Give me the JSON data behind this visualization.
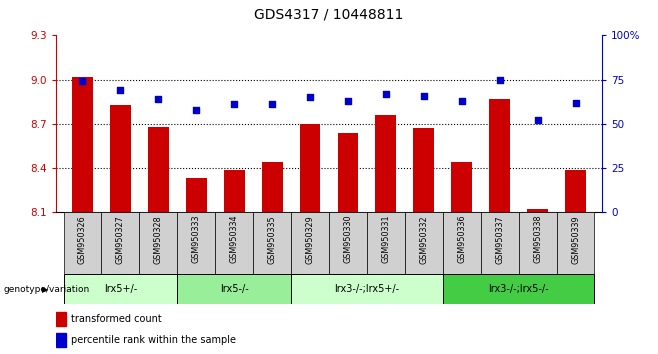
{
  "title": "GDS4317 / 10448811",
  "samples": [
    "GSM950326",
    "GSM950327",
    "GSM950328",
    "GSM950333",
    "GSM950334",
    "GSM950335",
    "GSM950329",
    "GSM950330",
    "GSM950331",
    "GSM950332",
    "GSM950336",
    "GSM950337",
    "GSM950338",
    "GSM950339"
  ],
  "bar_values": [
    9.02,
    8.83,
    8.68,
    8.33,
    8.39,
    8.44,
    8.7,
    8.64,
    8.76,
    8.67,
    8.44,
    8.87,
    8.12,
    8.39
  ],
  "dot_values": [
    74,
    69,
    64,
    58,
    61,
    61,
    65,
    63,
    67,
    66,
    63,
    75,
    52,
    62
  ],
  "ylim_left": [
    8.1,
    9.3
  ],
  "ylim_right": [
    0,
    100
  ],
  "yticks_left": [
    8.1,
    8.4,
    8.7,
    9.0,
    9.3
  ],
  "yticks_right": [
    0,
    25,
    50,
    75,
    100
  ],
  "bar_color": "#cc0000",
  "dot_color": "#0000cc",
  "bar_width": 0.55,
  "groups": [
    {
      "label": "lrx5+/-",
      "start": 0,
      "end": 3,
      "color": "#ccffcc"
    },
    {
      "label": "lrx5-/-",
      "start": 3,
      "end": 6,
      "color": "#99ee99"
    },
    {
      "label": "lrx3-/-;lrx5+/-",
      "start": 6,
      "end": 10,
      "color": "#ccffcc"
    },
    {
      "label": "lrx3-/-;lrx5-/-",
      "start": 10,
      "end": 14,
      "color": "#44cc44"
    }
  ],
  "genotype_label": "genotype/variation",
  "legend_bar_label": "transformed count",
  "legend_dot_label": "percentile rank within the sample",
  "grid_dotted_at": [
    9.0,
    8.7,
    8.4
  ],
  "bottom_gray_color": "#d0d0d0"
}
